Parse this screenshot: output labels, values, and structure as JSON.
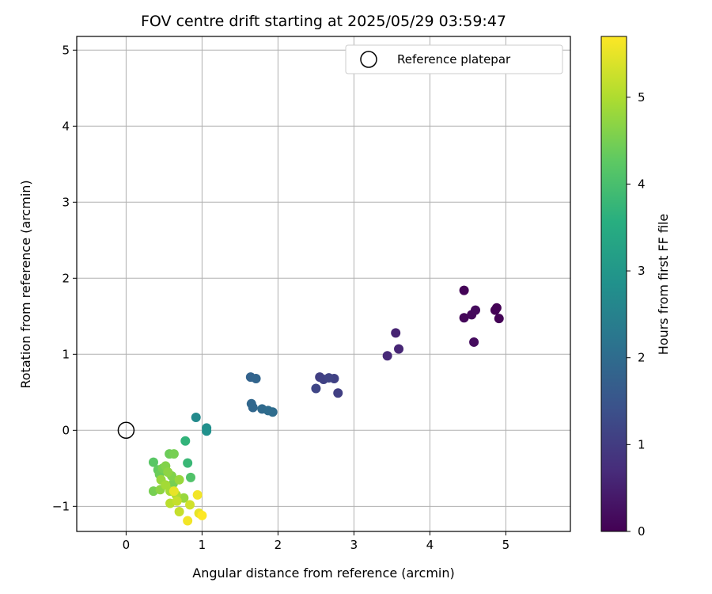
{
  "chart_data": {
    "type": "scatter",
    "title": "FOV centre drift starting at 2025/05/29 03:59:47",
    "xlabel": "Angular distance from reference (arcmin)",
    "ylabel": "Rotation from reference (arcmin)",
    "xlim": [
      -0.65,
      5.85
    ],
    "ylim": [
      -1.33,
      5.18
    ],
    "xticks": [
      0,
      1,
      2,
      3,
      4,
      5
    ],
    "yticks": [
      -1,
      0,
      1,
      2,
      3,
      4,
      5
    ],
    "xtick_labels": [
      "0",
      "1",
      "2",
      "3",
      "4",
      "5"
    ],
    "ytick_labels": [
      "−1",
      "0",
      "1",
      "2",
      "3",
      "4",
      "5"
    ],
    "grid": true,
    "legend": {
      "position": "top-right",
      "label": "Reference platepar"
    },
    "reference": {
      "x": 0,
      "y": 0
    },
    "colorbar": {
      "label": "Hours from first FF file",
      "range": [
        0,
        5.7
      ],
      "ticks": [
        0,
        1,
        2,
        3,
        4,
        5
      ],
      "tick_labels": [
        "0",
        "1",
        "2",
        "3",
        "4",
        "5"
      ],
      "colormap": "viridis"
    },
    "points": [
      {
        "x": 4.45,
        "y": 1.84,
        "t": 0.05
      },
      {
        "x": 4.45,
        "y": 1.48,
        "t": 0.1
      },
      {
        "x": 4.55,
        "y": 1.52,
        "t": 0.12
      },
      {
        "x": 4.6,
        "y": 1.58,
        "t": 0.15
      },
      {
        "x": 4.58,
        "y": 1.16,
        "t": 0.18
      },
      {
        "x": 4.86,
        "y": 1.58,
        "t": 0.02
      },
      {
        "x": 4.88,
        "y": 1.61,
        "t": 0.03
      },
      {
        "x": 4.91,
        "y": 1.47,
        "t": 0.04
      },
      {
        "x": 3.55,
        "y": 1.28,
        "t": 0.55
      },
      {
        "x": 3.59,
        "y": 1.07,
        "t": 0.6
      },
      {
        "x": 3.44,
        "y": 0.98,
        "t": 0.65
      },
      {
        "x": 2.55,
        "y": 0.7,
        "t": 1.05
      },
      {
        "x": 2.6,
        "y": 0.67,
        "t": 1.1
      },
      {
        "x": 2.67,
        "y": 0.69,
        "t": 1.15
      },
      {
        "x": 2.74,
        "y": 0.68,
        "t": 1.1
      },
      {
        "x": 2.5,
        "y": 0.55,
        "t": 1.2
      },
      {
        "x": 2.79,
        "y": 0.49,
        "t": 1.05
      },
      {
        "x": 1.64,
        "y": 0.7,
        "t": 1.8
      },
      {
        "x": 1.71,
        "y": 0.68,
        "t": 1.85
      },
      {
        "x": 1.65,
        "y": 0.35,
        "t": 1.9
      },
      {
        "x": 1.67,
        "y": 0.3,
        "t": 1.9
      },
      {
        "x": 1.79,
        "y": 0.28,
        "t": 1.95
      },
      {
        "x": 1.87,
        "y": 0.26,
        "t": 2.0
      },
      {
        "x": 1.93,
        "y": 0.24,
        "t": 2.0
      },
      {
        "x": 0.92,
        "y": 0.17,
        "t": 2.7
      },
      {
        "x": 1.06,
        "y": 0.03,
        "t": 2.8
      },
      {
        "x": 1.06,
        "y": -0.01,
        "t": 2.85
      },
      {
        "x": 0.78,
        "y": -0.14,
        "t": 3.7
      },
      {
        "x": 0.81,
        "y": -0.43,
        "t": 3.8
      },
      {
        "x": 0.85,
        "y": -0.62,
        "t": 4.1
      },
      {
        "x": 0.36,
        "y": -0.42,
        "t": 4.2
      },
      {
        "x": 0.57,
        "y": -0.31,
        "t": 4.4
      },
      {
        "x": 0.63,
        "y": -0.31,
        "t": 4.5
      },
      {
        "x": 0.42,
        "y": -0.52,
        "t": 4.3
      },
      {
        "x": 0.44,
        "y": -0.58,
        "t": 4.4
      },
      {
        "x": 0.48,
        "y": -0.5,
        "t": 4.5
      },
      {
        "x": 0.52,
        "y": -0.47,
        "t": 4.6
      },
      {
        "x": 0.55,
        "y": -0.55,
        "t": 4.7
      },
      {
        "x": 0.6,
        "y": -0.6,
        "t": 4.6
      },
      {
        "x": 0.46,
        "y": -0.65,
        "t": 4.8
      },
      {
        "x": 0.52,
        "y": -0.72,
        "t": 4.9
      },
      {
        "x": 0.62,
        "y": -0.7,
        "t": 4.5
      },
      {
        "x": 0.7,
        "y": -0.65,
        "t": 4.8
      },
      {
        "x": 0.36,
        "y": -0.8,
        "t": 4.5
      },
      {
        "x": 0.45,
        "y": -0.78,
        "t": 4.7
      },
      {
        "x": 0.58,
        "y": -0.8,
        "t": 4.9
      },
      {
        "x": 0.66,
        "y": -0.85,
        "t": 5.0
      },
      {
        "x": 0.76,
        "y": -0.89,
        "t": 4.8
      },
      {
        "x": 0.58,
        "y": -0.96,
        "t": 5.1
      },
      {
        "x": 0.67,
        "y": -0.93,
        "t": 5.2
      },
      {
        "x": 0.84,
        "y": -0.98,
        "t": 5.3
      },
      {
        "x": 0.7,
        "y": -1.07,
        "t": 5.2
      },
      {
        "x": 0.94,
        "y": -0.85,
        "t": 5.6
      },
      {
        "x": 0.63,
        "y": -0.8,
        "t": 5.5
      },
      {
        "x": 0.96,
        "y": -1.09,
        "t": 5.5
      },
      {
        "x": 1.0,
        "y": -1.12,
        "t": 5.7
      },
      {
        "x": 0.81,
        "y": -1.19,
        "t": 5.6
      }
    ]
  }
}
